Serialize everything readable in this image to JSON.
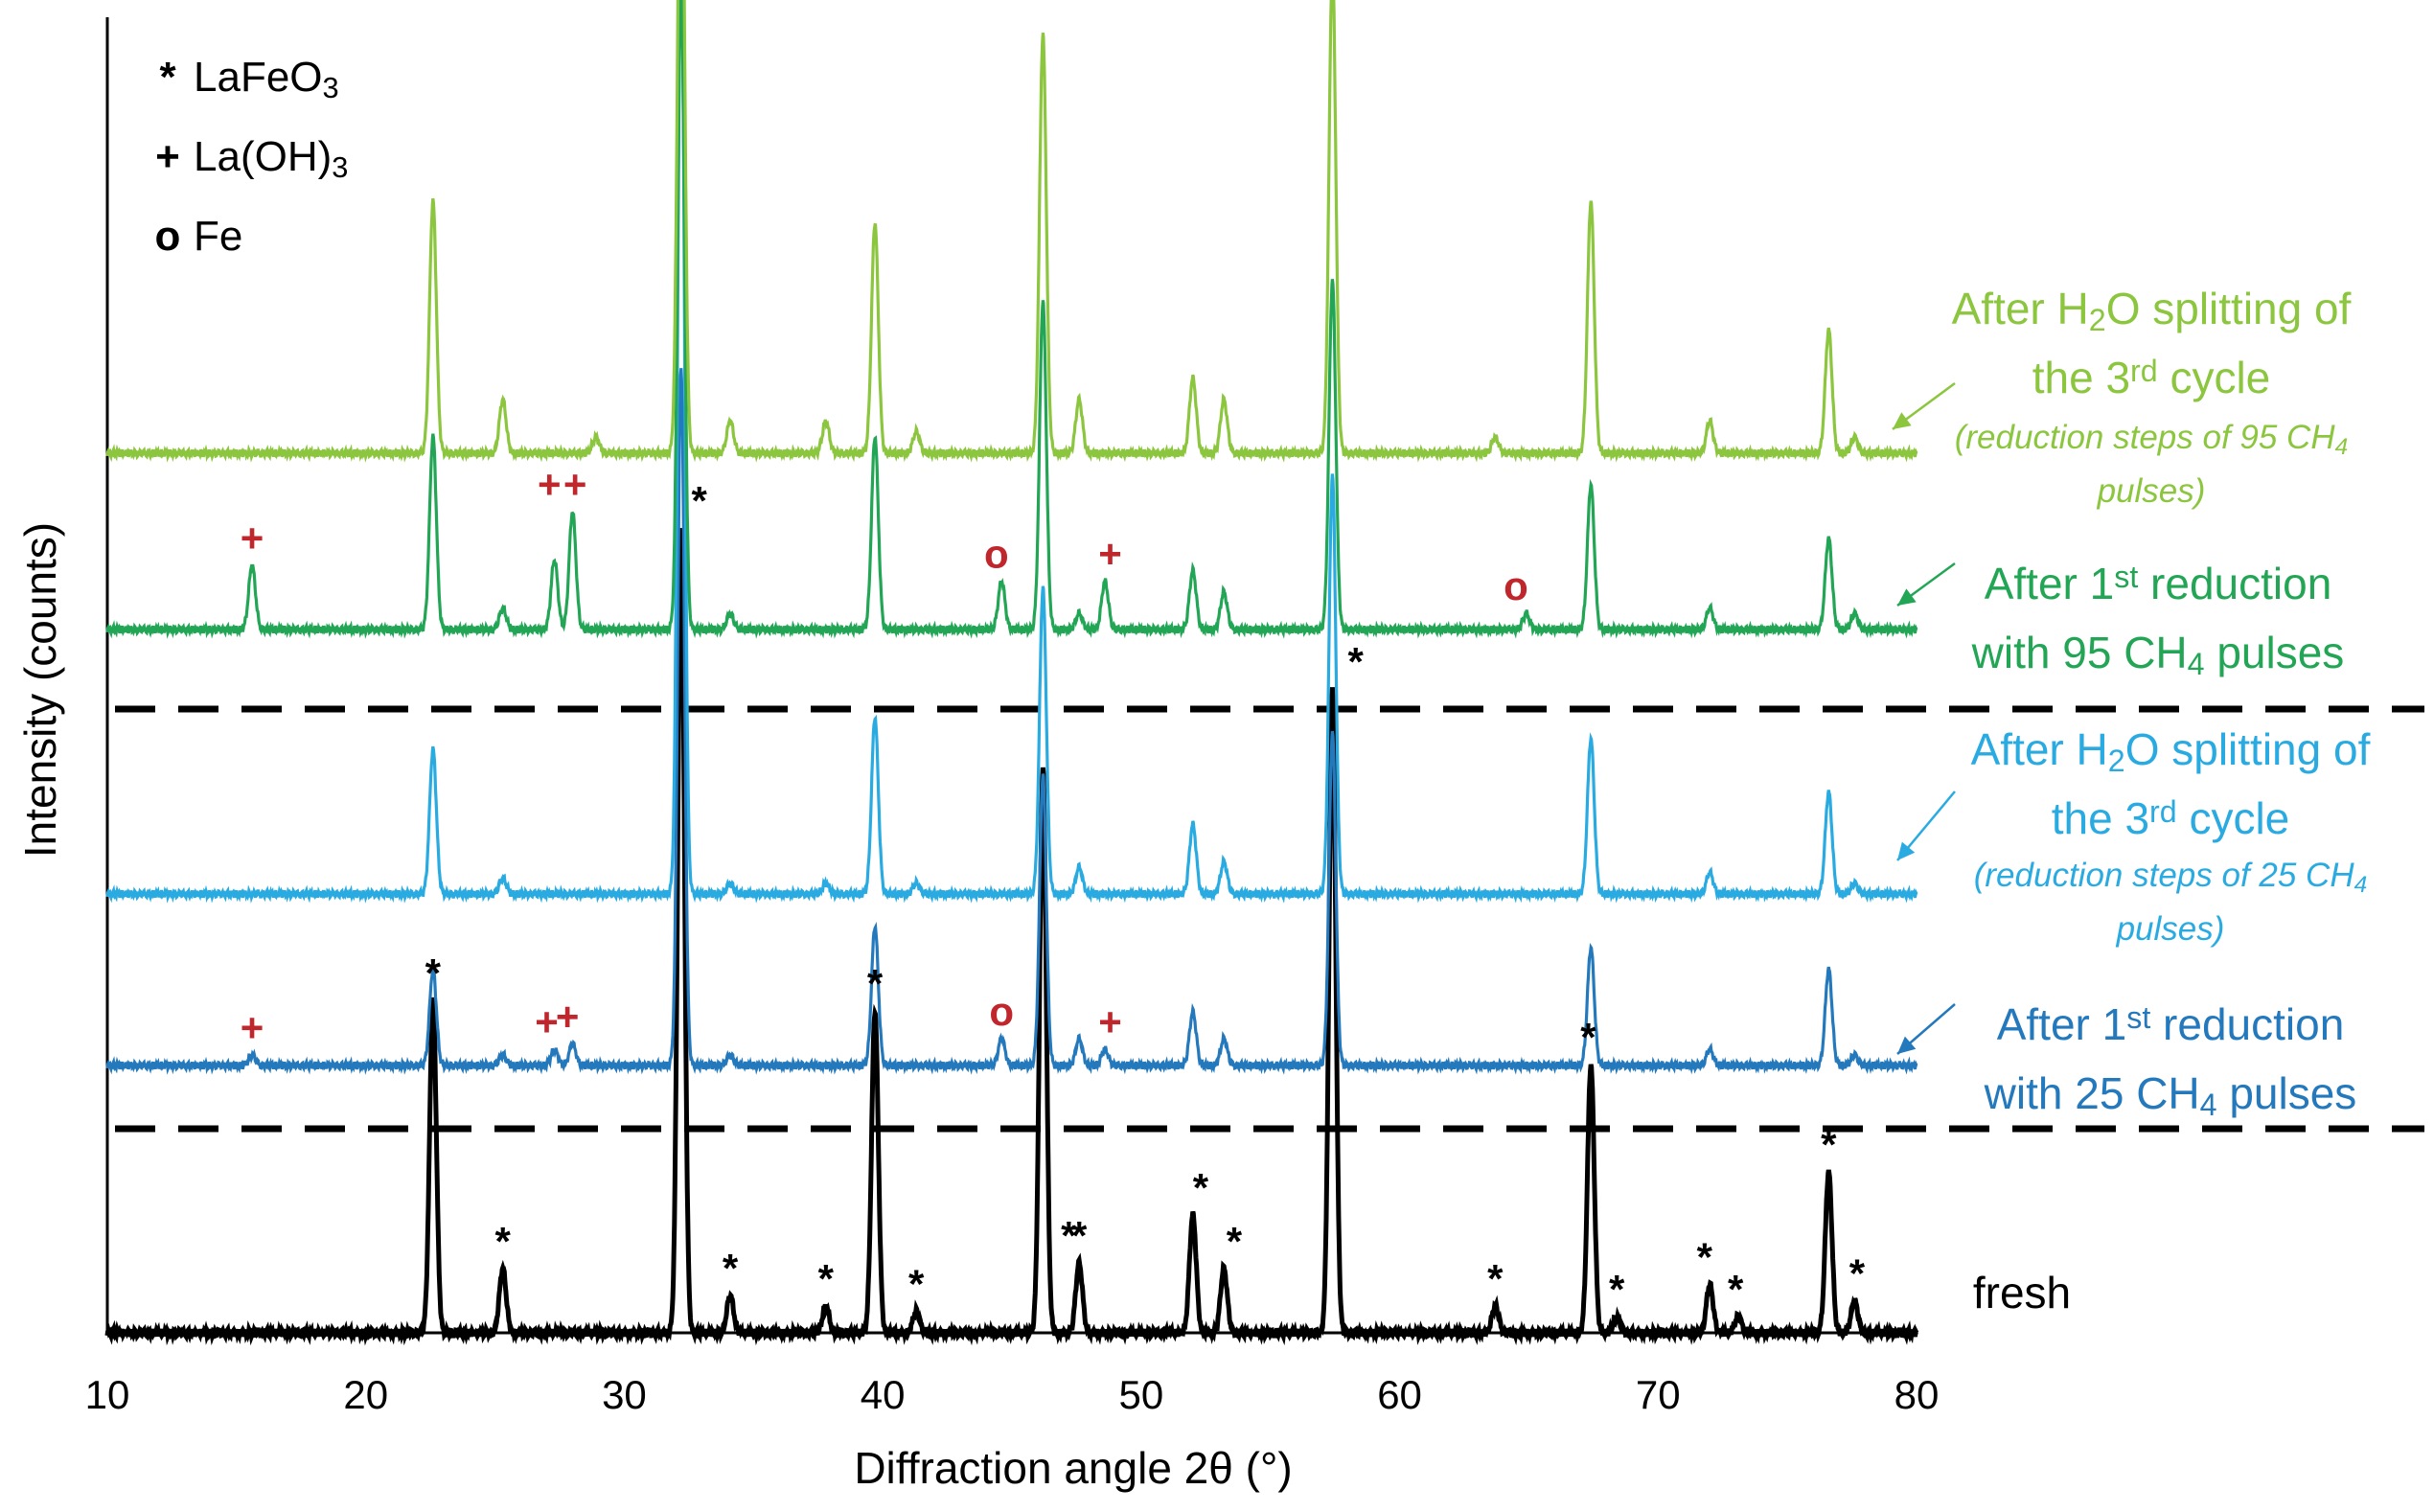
{
  "chart_data": {
    "type": "line",
    "title": "",
    "xlabel": "Diffraction angle 2θ (°)",
    "ylabel": "Intensity (counts)",
    "xlim": [
      10,
      80
    ],
    "x_ticks": [
      10,
      20,
      30,
      40,
      50,
      60,
      70,
      80
    ],
    "grid": false,
    "legend": {
      "placement": "top-left",
      "entries": [
        {
          "symbol": "*",
          "label": "LaFeO",
          "sub": "3",
          "symbol_color": "#000000"
        },
        {
          "symbol": "+",
          "label": "La(OH)",
          "sub": "3",
          "symbol_color": "#c0272d"
        },
        {
          "symbol": "o",
          "label": "Fe",
          "sub": "",
          "symbol_color": "#c0272d"
        }
      ]
    },
    "peaks_2theta": {
      "LaFeO3": [
        22.6,
        25.3,
        32.2,
        34.1,
        37.8,
        39.7,
        41.3,
        46.2,
        47.6,
        52.0,
        53.2,
        57.4,
        63.7,
        67.4,
        68.4,
        72.0,
        73.1,
        76.6,
        77.6
      ],
      "La(OH)3": [
        15.6,
        27.3,
        28.0,
        48.6
      ],
      "Fe": [
        44.6,
        64.9
      ]
    },
    "series": [
      {
        "name": "fresh",
        "color": "#000000",
        "label_lines": [
          "fresh"
        ],
        "peaks": [
          [
            22.6,
            0.62
          ],
          [
            25.3,
            0.12
          ],
          [
            32.2,
            1.5
          ],
          [
            34.1,
            0.07
          ],
          [
            37.8,
            0.05
          ],
          [
            39.7,
            0.6
          ],
          [
            41.3,
            0.04
          ],
          [
            46.2,
            1.05
          ],
          [
            47.6,
            0.13
          ],
          [
            52.0,
            0.22
          ],
          [
            53.2,
            0.12
          ],
          [
            57.4,
            1.2
          ],
          [
            63.7,
            0.05
          ],
          [
            67.4,
            0.5
          ],
          [
            68.4,
            0.03
          ],
          [
            72.0,
            0.09
          ],
          [
            73.1,
            0.03
          ],
          [
            76.6,
            0.3
          ],
          [
            77.6,
            0.06
          ]
        ],
        "markers": {
          "LaFeO3": [
            22.6,
            25.3,
            32.9,
            34.1,
            37.8,
            39.7,
            41.3,
            47.2,
            47.6,
            52.3,
            53.6,
            58.3,
            63.7,
            67.3,
            68.4,
            71.8,
            73.0,
            76.6,
            77.7
          ]
        }
      },
      {
        "name": "After 1st reduction with 25 CH4 pulses",
        "color": "#2479bd",
        "label_lines": [
          "After 1st reduction",
          "with 25 CH4 pulses"
        ],
        "note": "",
        "peaks": [
          [
            15.6,
            0.02
          ],
          [
            22.6,
            0.18
          ],
          [
            25.3,
            0.02
          ],
          [
            27.3,
            0.03
          ],
          [
            28.0,
            0.04
          ],
          [
            32.2,
            1.3
          ],
          [
            34.1,
            0.02
          ],
          [
            39.7,
            0.26
          ],
          [
            44.6,
            0.05
          ],
          [
            46.2,
            0.54
          ],
          [
            47.6,
            0.05
          ],
          [
            48.6,
            0.03
          ],
          [
            52.0,
            0.1
          ],
          [
            53.2,
            0.05
          ],
          [
            57.4,
            0.62
          ],
          [
            67.4,
            0.22
          ],
          [
            72.0,
            0.03
          ],
          [
            76.6,
            0.18
          ],
          [
            77.6,
            0.02
          ]
        ],
        "markers": {
          "La(OH)3": [
            15.6,
            27.0,
            27.8,
            48.8
          ],
          "Fe": [
            44.6
          ]
        }
      },
      {
        "name": "After H2O splitting of the 3rd cycle (reduction steps of 25 CH4 pulses)",
        "color": "#29abe2",
        "label_lines": [
          "After H2O splitting of",
          "the 3rd cycle"
        ],
        "note": "(reduction steps of 25 CH4 pulses)",
        "peaks": [
          [
            22.6,
            0.27
          ],
          [
            25.3,
            0.03
          ],
          [
            32.2,
            1.8
          ],
          [
            34.1,
            0.02
          ],
          [
            37.8,
            0.02
          ],
          [
            39.7,
            0.33
          ],
          [
            41.3,
            0.02
          ],
          [
            46.2,
            0.57
          ],
          [
            47.6,
            0.05
          ],
          [
            52.0,
            0.13
          ],
          [
            53.2,
            0.06
          ],
          [
            57.4,
            0.78
          ],
          [
            67.4,
            0.29
          ],
          [
            72.0,
            0.04
          ],
          [
            76.6,
            0.19
          ],
          [
            77.6,
            0.02
          ]
        ],
        "markers": {}
      },
      {
        "name": "After 1st reduction with 95 CH4 pulses",
        "color": "#22a655",
        "label_lines": [
          "After 1st reduction",
          "with 95 CH4 pulses"
        ],
        "note": "",
        "peaks": [
          [
            15.6,
            0.12
          ],
          [
            22.6,
            0.36
          ],
          [
            25.3,
            0.04
          ],
          [
            27.3,
            0.13
          ],
          [
            28.0,
            0.22
          ],
          [
            32.2,
            1.2
          ],
          [
            34.1,
            0.03
          ],
          [
            39.7,
            0.36
          ],
          [
            44.6,
            0.09
          ],
          [
            46.2,
            0.61
          ],
          [
            47.6,
            0.03
          ],
          [
            48.6,
            0.09
          ],
          [
            52.0,
            0.11
          ],
          [
            53.2,
            0.07
          ],
          [
            57.4,
            0.65
          ],
          [
            64.9,
            0.03
          ],
          [
            67.4,
            0.27
          ],
          [
            72.0,
            0.04
          ],
          [
            76.6,
            0.17
          ],
          [
            77.6,
            0.03
          ]
        ],
        "markers": {
          "La(OH)3": [
            15.6,
            27.1,
            28.1,
            48.8
          ],
          "Fe": [
            44.4,
            64.5
          ]
        }
      },
      {
        "name": "After H2O splitting of the 3rd cycle (reduction steps of 95 CH4 pulses)",
        "color": "#8cc63f",
        "label_lines": [
          "After H2O splitting of",
          "the 3rd cycle"
        ],
        "note": "(reduction steps of 95 CH4 pulses)",
        "peaks": [
          [
            22.6,
            0.47
          ],
          [
            25.3,
            0.1
          ],
          [
            28.9,
            0.03
          ],
          [
            32.2,
            1.34
          ],
          [
            34.1,
            0.06
          ],
          [
            37.8,
            0.06
          ],
          [
            39.7,
            0.43
          ],
          [
            41.3,
            0.04
          ],
          [
            46.2,
            0.78
          ],
          [
            47.6,
            0.1
          ],
          [
            52.0,
            0.14
          ],
          [
            53.2,
            0.1
          ],
          [
            57.4,
            0.91
          ],
          [
            63.7,
            0.03
          ],
          [
            67.4,
            0.47
          ],
          [
            72.0,
            0.06
          ],
          [
            76.6,
            0.23
          ],
          [
            77.6,
            0.03
          ]
        ],
        "markers": {}
      }
    ]
  }
}
